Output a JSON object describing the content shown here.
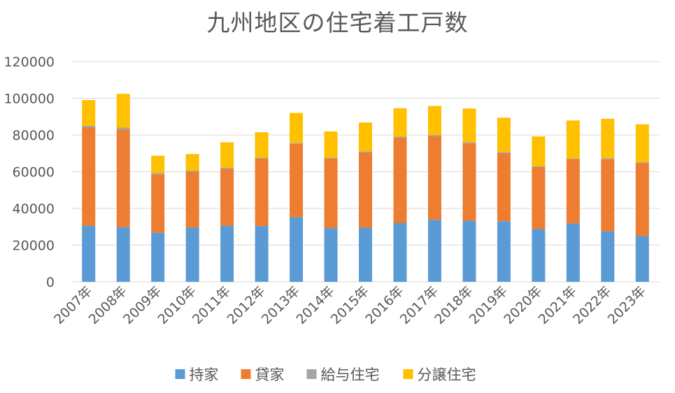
{
  "chart_data": {
    "type": "bar",
    "stacked": true,
    "title": "九州地区の住宅着工戸数",
    "categories": [
      "2007年",
      "2008年",
      "2009年",
      "2010年",
      "2011年",
      "2012年",
      "2013年",
      "2014年",
      "2015年",
      "2016年",
      "2017年",
      "2018年",
      "2019年",
      "2020年",
      "2021年",
      "2022年",
      "2023年"
    ],
    "ylim": [
      0,
      120000
    ],
    "yticks": [
      0,
      20000,
      40000,
      60000,
      80000,
      100000,
      120000
    ],
    "grid": true,
    "legend_position": "bottom",
    "series": [
      {
        "name": "持家",
        "color": "#5B9BD5",
        "values": [
          30500,
          29800,
          26800,
          29500,
          30500,
          30400,
          35200,
          29300,
          29500,
          32000,
          33800,
          33300,
          33000,
          28800,
          31800,
          27500,
          25000
        ]
      },
      {
        "name": "貸家",
        "color": "#ED7D31",
        "values": [
          53500,
          53200,
          31800,
          30500,
          31000,
          36700,
          40000,
          37800,
          41000,
          46500,
          45700,
          42200,
          37200,
          33700,
          35000,
          39300,
          39700
        ]
      },
      {
        "name": "給与住宅",
        "color": "#A5A5A5",
        "values": [
          1000,
          1000,
          700,
          600,
          600,
          500,
          500,
          500,
          600,
          600,
          600,
          600,
          600,
          500,
          400,
          500,
          500
        ]
      },
      {
        "name": "分譲住宅",
        "color": "#FFC000",
        "values": [
          14000,
          18400,
          9400,
          9000,
          13900,
          13900,
          16300,
          14300,
          15700,
          15500,
          15700,
          18300,
          18600,
          16200,
          20700,
          21500,
          20600
        ]
      }
    ]
  }
}
